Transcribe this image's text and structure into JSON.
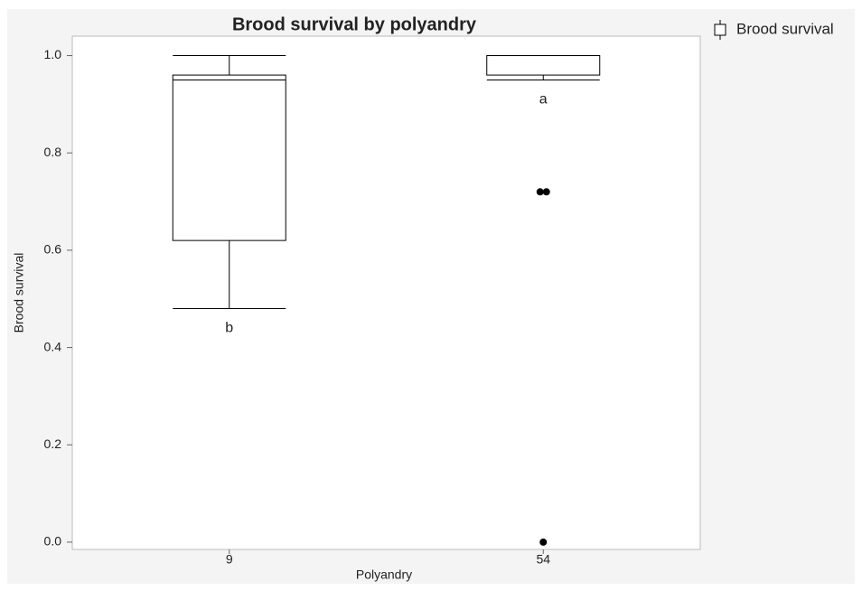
{
  "chart_data": {
    "type": "box",
    "title": "Brood survival by polyandry",
    "x_label": "Polyandry",
    "y_label": "Brood survival",
    "categories": [
      "9",
      "54"
    ],
    "series": [
      {
        "name": "Brood survival",
        "color": "#000000",
        "boxes": [
          {
            "min": 0.48,
            "q1": 0.62,
            "median": 0.95,
            "q3": 0.96,
            "max": 1.0,
            "outliers": []
          },
          {
            "min": 0.95,
            "q1": 0.96,
            "median": 1.0,
            "q3": 1.0,
            "max": 1.0,
            "outliers": [
              0.72,
              0.72,
              0
            ]
          }
        ]
      }
    ],
    "group_letters": [
      "b",
      "a"
    ],
    "ylim": [
      -0.015,
      1.04
    ],
    "yticks": [
      {
        "value": 0,
        "label": "0.0"
      },
      0.2,
      0.4,
      0.6,
      0.8,
      {
        "value": 1,
        "label": "1.0"
      }
    ],
    "legend": "top-right"
  }
}
